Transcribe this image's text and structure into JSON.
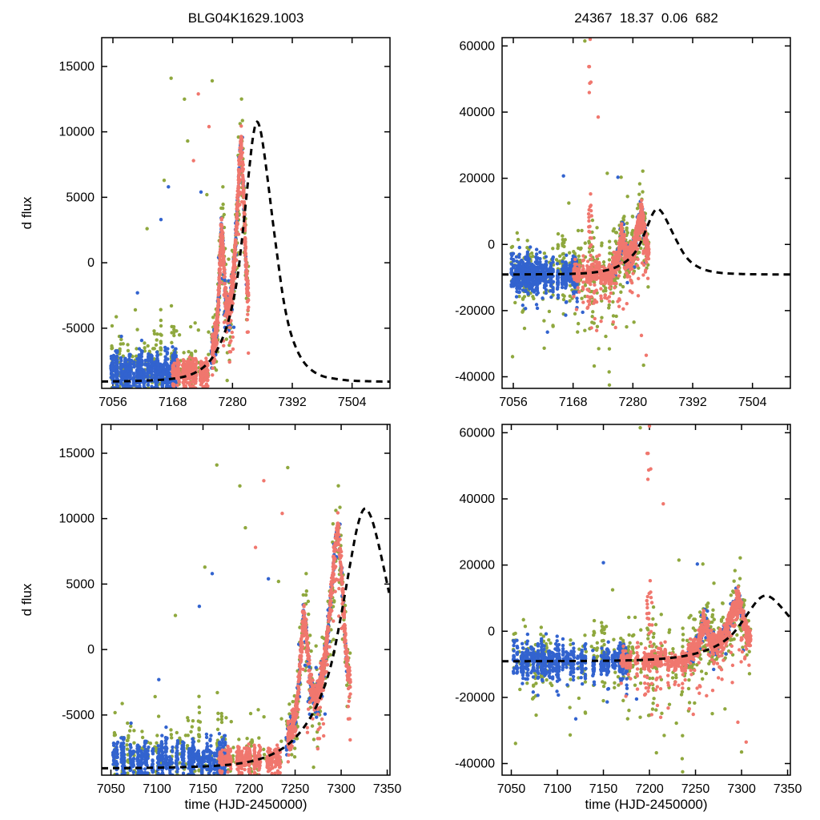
{
  "page": {
    "background": "#ffffff"
  },
  "colors": {
    "blue": "#3263cf",
    "salmon": "#f0776e",
    "green": "#8fa83e",
    "model": "#000000",
    "text": "#000000",
    "axis": "#000000"
  },
  "chart_data": [
    {
      "id": "top-left",
      "type": "scatter",
      "title": "BLG04K1629.1003",
      "ylabel": "d flux",
      "xlabel": "",
      "dataset": "left",
      "xlim": [
        7035,
        7575
      ],
      "ylim": [
        -9600,
        17200
      ],
      "xticks": [
        7056,
        7168,
        7280,
        7392,
        7504
      ],
      "yticks": [
        -5000,
        0,
        5000,
        10000,
        15000
      ],
      "grid": false,
      "legend": false,
      "show_model": true
    },
    {
      "id": "top-right",
      "type": "scatter",
      "title": "24367  18.37  0.06  682",
      "ylabel": "",
      "xlabel": "",
      "dataset": "right",
      "xlim": [
        7035,
        7575
      ],
      "ylim": [
        -43500,
        62500
      ],
      "xticks": [
        7056,
        7168,
        7280,
        7392,
        7504
      ],
      "yticks": [
        -40000,
        -20000,
        0,
        20000,
        40000,
        60000
      ],
      "grid": false,
      "legend": false,
      "show_model": true
    },
    {
      "id": "bottom-left",
      "type": "scatter",
      "title": "",
      "ylabel": "d flux",
      "xlabel": "time (HJD-2450000)",
      "dataset": "left",
      "xlim": [
        7040,
        7353
      ],
      "ylim": [
        -9600,
        17200
      ],
      "xticks": [
        7050,
        7100,
        7150,
        7200,
        7250,
        7300,
        7350
      ],
      "yticks": [
        -5000,
        0,
        5000,
        10000,
        15000
      ],
      "grid": false,
      "legend": false,
      "show_model": true
    },
    {
      "id": "bottom-right",
      "type": "scatter",
      "title": "",
      "ylabel": "",
      "xlabel": "time (HJD-2450000)",
      "dataset": "right",
      "xlim": [
        7040,
        7353
      ],
      "ylim": [
        -43500,
        62500
      ],
      "xticks": [
        7050,
        7100,
        7150,
        7200,
        7250,
        7300,
        7350
      ],
      "yticks": [
        -40000,
        -20000,
        0,
        20000,
        40000,
        60000
      ],
      "grid": false,
      "legend": false,
      "show_model": true
    }
  ],
  "shared": {
    "model_curve": {
      "description": "black dashed microlensing model light curve, baseline -9050, peak 10750 at t=7325",
      "style": "dashed",
      "color_key": "model",
      "points": [
        [
          7030,
          -9080
        ],
        [
          7080,
          -9050
        ],
        [
          7120,
          -9000
        ],
        [
          7160,
          -8900
        ],
        [
          7190,
          -8700
        ],
        [
          7210,
          -8400
        ],
        [
          7228,
          -7900
        ],
        [
          7245,
          -7100
        ],
        [
          7260,
          -5900
        ],
        [
          7272,
          -4500
        ],
        [
          7282,
          -2800
        ],
        [
          7290,
          -900
        ],
        [
          7297,
          1500
        ],
        [
          7304,
          4200
        ],
        [
          7311,
          7000
        ],
        [
          7318,
          9500
        ],
        [
          7325,
          10750
        ],
        [
          7332,
          10200
        ],
        [
          7339,
          8500
        ],
        [
          7347,
          6000
        ],
        [
          7356,
          3000
        ],
        [
          7365,
          200
        ],
        [
          7375,
          -2700
        ],
        [
          7386,
          -4900
        ],
        [
          7398,
          -6400
        ],
        [
          7412,
          -7500
        ],
        [
          7428,
          -8200
        ],
        [
          7448,
          -8650
        ],
        [
          7470,
          -8850
        ],
        [
          7500,
          -9000
        ],
        [
          7540,
          -9060
        ],
        [
          7580,
          -9090
        ]
      ]
    },
    "data_ridge": {
      "description": "ridge traced by the measured points (two brightening spikes at ~7259 and ~7297)",
      "points": [
        [
          7168,
          -8550
        ],
        [
          7185,
          -8450
        ],
        [
          7200,
          -8250
        ],
        [
          7215,
          -7950
        ],
        [
          7228,
          -7500
        ],
        [
          7240,
          -6900
        ],
        [
          7248,
          -5800
        ],
        [
          7252,
          -4200
        ],
        [
          7256,
          -500
        ],
        [
          7259,
          2400
        ],
        [
          7262,
          1200
        ],
        [
          7266,
          -2200
        ],
        [
          7271,
          -3600
        ],
        [
          7276,
          -3000
        ],
        [
          7281,
          -1200
        ],
        [
          7286,
          1800
        ],
        [
          7290,
          5200
        ],
        [
          7294,
          8300
        ],
        [
          7297,
          8900
        ],
        [
          7300,
          6500
        ],
        [
          7303,
          2500
        ],
        [
          7306,
          -800
        ],
        [
          7309,
          -2400
        ]
      ]
    },
    "datasets": {
      "left": {
        "seed": 20481,
        "clusters": [
          {
            "series": "green",
            "mode": "nights",
            "t0": 7050,
            "t1": 7242,
            "nights": 80,
            "n": 280,
            "center": -8100,
            "sigma": 1500,
            "tail_p": 0.1,
            "tail": 3500
          },
          {
            "series": "green",
            "mode": "track",
            "t0": 7242,
            "t1": 7310,
            "n": 210,
            "sigma": 1700,
            "tail_p": 0.08,
            "tail": 3500
          },
          {
            "series": "blue",
            "mode": "nights",
            "t0": 7052,
            "t1": 7178,
            "nights": 55,
            "n": 950,
            "center": -8350,
            "sigma": 620,
            "tail_p": 0.1,
            "tail": 1400
          },
          {
            "series": "blue",
            "mode": "track",
            "t0": 7240,
            "t1": 7306,
            "n": 210,
            "sigma": 620,
            "tail_p": 0.05,
            "tail": 2000
          },
          {
            "series": "salmon",
            "mode": "nights",
            "t0": 7168,
            "t1": 7242,
            "nights": 34,
            "n": 500,
            "center": -8300,
            "sigma": 420,
            "tail_p": 0.12,
            "tail": 2600
          },
          {
            "series": "salmon",
            "mode": "track",
            "t0": 7242,
            "t1": 7310,
            "n": 780,
            "sigma": 520,
            "tail_p": 0.07,
            "tail": 2800
          }
        ],
        "outliers": [
          {
            "series": "green",
            "t": 7165,
            "y": 14100
          },
          {
            "series": "green",
            "t": 7190,
            "y": 12500
          },
          {
            "series": "green",
            "t": 7242,
            "y": 13900
          },
          {
            "series": "green",
            "t": 7196,
            "y": 9300
          },
          {
            "series": "green",
            "t": 7152,
            "y": 6300
          },
          {
            "series": "green",
            "t": 7232,
            "y": 5200
          },
          {
            "series": "green",
            "t": 7262,
            "y": 5800
          },
          {
            "series": "green",
            "t": 7120,
            "y": 2600
          },
          {
            "series": "green",
            "t": 7098,
            "y": -3600
          },
          {
            "series": "green",
            "t": 7210,
            "y": -4600
          },
          {
            "series": "salmon",
            "t": 7216,
            "y": 12900
          },
          {
            "series": "salmon",
            "t": 7236,
            "y": 10400
          },
          {
            "series": "salmon",
            "t": 7207,
            "y": 7800
          },
          {
            "series": "salmon",
            "t": 7281,
            "y": -6600
          },
          {
            "series": "blue",
            "t": 7160,
            "y": 5800
          },
          {
            "series": "blue",
            "t": 7221,
            "y": 5400
          },
          {
            "series": "blue",
            "t": 7146,
            "y": 3300
          },
          {
            "series": "blue",
            "t": 7102,
            "y": -2300
          },
          {
            "series": "blue",
            "t": 7254,
            "y": 400
          }
        ]
      },
      "right": {
        "seed": 777,
        "clusters": [
          {
            "series": "green",
            "mode": "nights",
            "t0": 7050,
            "t1": 7242,
            "nights": 80,
            "n": 300,
            "center": -8300,
            "sigma": 5200,
            "tail_p": 0.12,
            "tail": 12000
          },
          {
            "series": "green",
            "mode": "track",
            "t0": 7242,
            "t1": 7310,
            "n": 220,
            "sigma": 5200,
            "tail_p": 0.1,
            "tail": 12000
          },
          {
            "series": "blue",
            "mode": "nights",
            "t0": 7052,
            "t1": 7178,
            "nights": 55,
            "n": 900,
            "center": -8900,
            "sigma": 2100,
            "tail_p": 0.08,
            "tail": 5000
          },
          {
            "series": "blue",
            "mode": "track",
            "t0": 7240,
            "t1": 7306,
            "n": 190,
            "sigma": 1800,
            "tail_p": 0.05,
            "tail": 5000
          },
          {
            "series": "salmon",
            "mode": "nights",
            "t0": 7168,
            "t1": 7242,
            "nights": 34,
            "n": 480,
            "center": -8700,
            "sigma": 1500,
            "tail_p": 0.1,
            "tail": 7000
          },
          {
            "series": "salmon",
            "mode": "track",
            "t0": 7242,
            "t1": 7310,
            "n": 700,
            "sigma": 1600,
            "tail_p": 0.08,
            "tail": 9000
          },
          {
            "series": "salmon",
            "mode": "streak",
            "t0": 7197,
            "t1": 7203,
            "n": 26,
            "ymin": -40500,
            "ymax": 62400
          }
        ],
        "outliers": [
          {
            "series": "salmon",
            "t": 7215,
            "y": 38500
          },
          {
            "series": "salmon",
            "t": 7200,
            "y": 62000
          },
          {
            "series": "salmon",
            "t": 7290,
            "y": -15500
          },
          {
            "series": "salmon",
            "t": 7296,
            "y": -27500
          },
          {
            "series": "salmon",
            "t": 7305,
            "y": -33500
          },
          {
            "series": "salmon",
            "t": 7262,
            "y": -19500
          },
          {
            "series": "green",
            "t": 7190,
            "y": 61500
          },
          {
            "series": "green",
            "t": 7232,
            "y": 21500
          },
          {
            "series": "green",
            "t": 7258,
            "y": 20300
          },
          {
            "series": "green",
            "t": 7270,
            "y": 14500
          },
          {
            "series": "green",
            "t": 7160,
            "y": 12500
          },
          {
            "series": "green",
            "t": 7150,
            "y": -21000
          },
          {
            "series": "green",
            "t": 7190,
            "y": -26000
          },
          {
            "series": "green",
            "t": 7216,
            "y": -31500
          },
          {
            "series": "green",
            "t": 7236,
            "y": -42500
          },
          {
            "series": "green",
            "t": 7282,
            "y": -23500
          },
          {
            "series": "green",
            "t": 7300,
            "y": -36500
          },
          {
            "series": "blue",
            "t": 7150,
            "y": 20700
          },
          {
            "series": "blue",
            "t": 7252,
            "y": 20300
          },
          {
            "series": "blue",
            "t": 7186,
            "y": -20500
          },
          {
            "series": "blue",
            "t": 7120,
            "y": -26500
          }
        ]
      }
    }
  }
}
